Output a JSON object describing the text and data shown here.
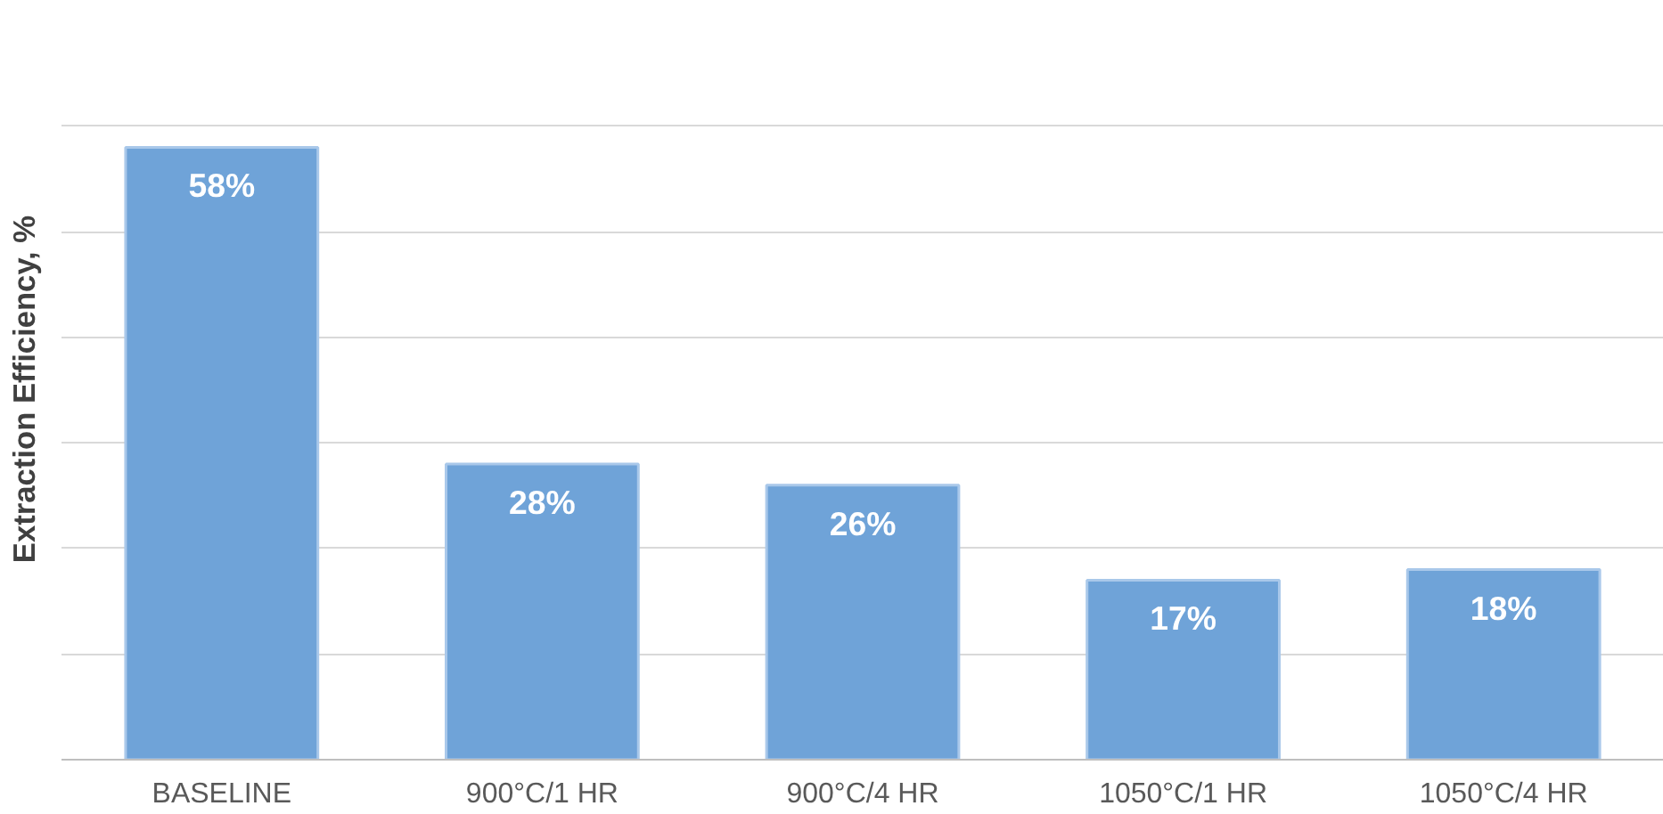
{
  "chart_data": {
    "type": "bar",
    "ylabel": "Extraction Efficiency, %",
    "categories": [
      "BASELINE",
      "900°C/1 HR",
      "900°C/4 HR",
      "1050°C/1 HR",
      "1050°C/4 HR"
    ],
    "values": [
      58,
      28,
      26,
      17,
      18
    ],
    "value_labels": [
      "58%",
      "28%",
      "26%",
      "17%",
      "18%"
    ],
    "color": "#6fa3d8",
    "yticks": [
      {
        "value": 0,
        "label": null
      },
      {
        "value": 10,
        "label": null
      },
      {
        "value": 20,
        "label": null
      },
      {
        "value": 30,
        "label": null
      },
      {
        "value": 40,
        "label": null
      },
      {
        "value": 50,
        "label": null
      },
      {
        "value": 60,
        "label": null
      }
    ],
    "grid": "y",
    "tick_labels": "x"
  }
}
